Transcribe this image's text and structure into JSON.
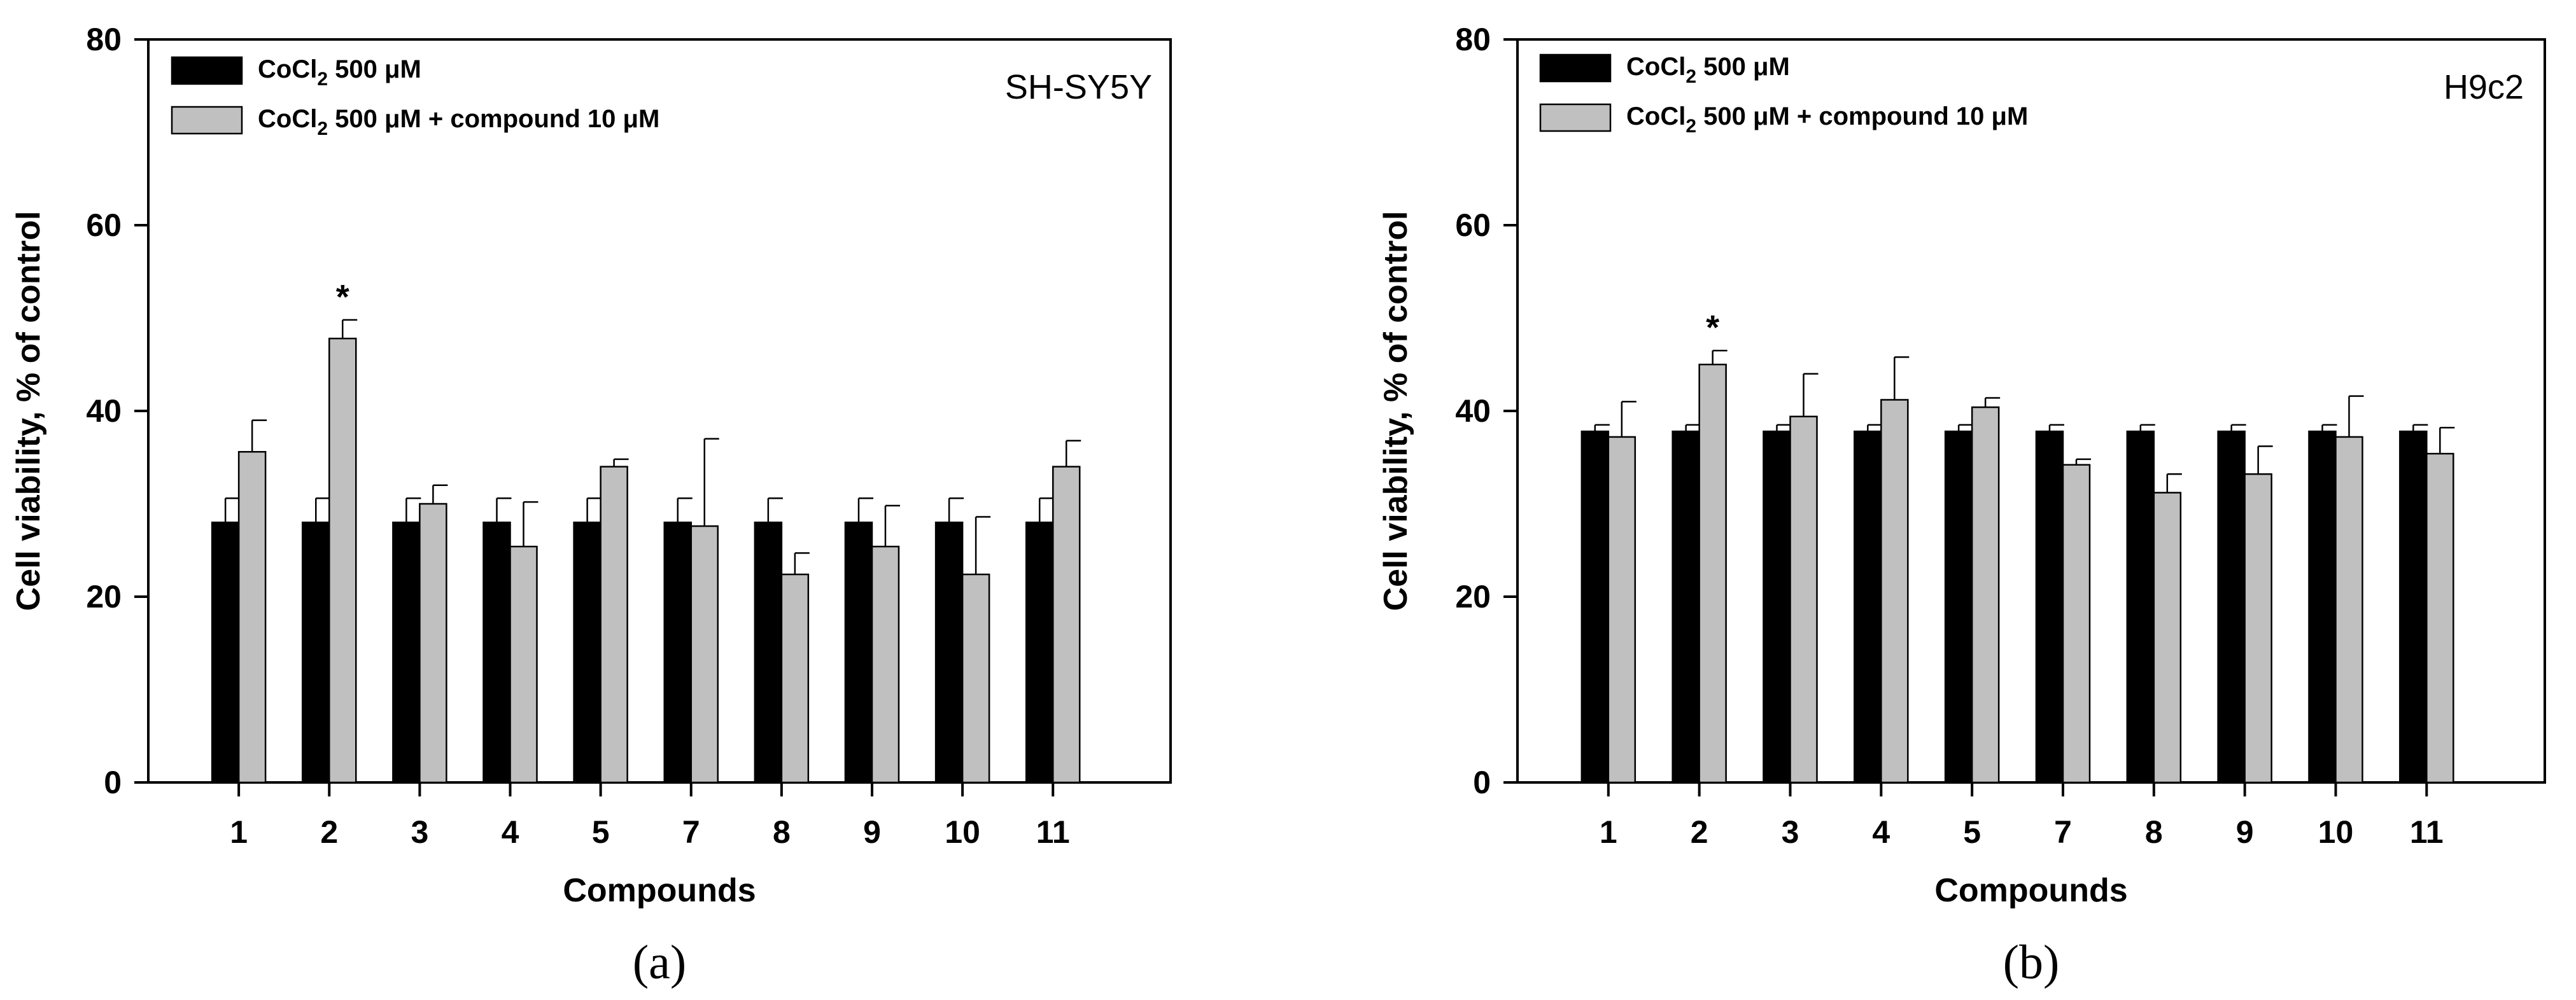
{
  "chart_data": [
    {
      "type": "bar",
      "panel_caption": "(a)",
      "inset_label": "SH-SY5Y",
      "xlabel": "Compounds",
      "ylabel": "Cell viability, % of control",
      "ylim": [
        0,
        80
      ],
      "yticks": [
        "0",
        "20",
        "40",
        "60",
        "80"
      ],
      "categories": [
        "1",
        "2",
        "3",
        "4",
        "5",
        "7",
        "8",
        "9",
        "10",
        "11"
      ],
      "legend_position": "top-left",
      "series": [
        {
          "name": "CoCl2 500 μM",
          "legend_main": "CoCl",
          "legend_sub": "2",
          "legend_rest": " 500 μM",
          "color": "#000000",
          "values": [
            28,
            28,
            28,
            28,
            28,
            28,
            28,
            28,
            28,
            28
          ],
          "errors": [
            2.6,
            2.6,
            2.6,
            2.6,
            2.6,
            2.6,
            2.6,
            2.6,
            2.6,
            2.6
          ]
        },
        {
          "name": "CoCl2 500 μM + compound 10 μM",
          "legend_main": "CoCl",
          "legend_sub": "2",
          "legend_rest": " 500 μM + compound 10 μM",
          "color": "#c0c0c0",
          "values": [
            35.6,
            47.8,
            30,
            25.4,
            34,
            27.6,
            22.4,
            25.4,
            22.4,
            34
          ],
          "errors": [
            3.4,
            2.0,
            2.0,
            4.8,
            0.8,
            9.4,
            2.3,
            4.4,
            6.2,
            2.8
          ]
        }
      ],
      "annotations": [
        {
          "category": "2",
          "series": 1,
          "text": "*"
        }
      ]
    },
    {
      "type": "bar",
      "panel_caption": "(b)",
      "inset_label": "H9c2",
      "xlabel": "Compounds",
      "ylabel": "Cell viability, % of control",
      "ylim": [
        0,
        80
      ],
      "yticks": [
        "0",
        "20",
        "40",
        "60",
        "80"
      ],
      "categories": [
        "1",
        "2",
        "3",
        "4",
        "5",
        "7",
        "8",
        "9",
        "10",
        "11"
      ],
      "legend_position": "top-left",
      "series": [
        {
          "name": "CoCl2 500 μM",
          "legend_main": "CoCl",
          "legend_sub": "2",
          "legend_rest": " 500 μM",
          "color": "#000000",
          "values": [
            37.8,
            37.8,
            37.8,
            37.8,
            37.8,
            37.8,
            37.8,
            37.8,
            37.8,
            37.8
          ],
          "errors": [
            0.7,
            0.7,
            0.7,
            0.7,
            0.7,
            0.7,
            0.7,
            0.7,
            0.7,
            0.7
          ]
        },
        {
          "name": "CoCl2 500 μM + compound 10 μM",
          "legend_main": "CoCl",
          "legend_sub": "2",
          "legend_rest": " 500 μM + compound 10 μM",
          "color": "#c0c0c0",
          "values": [
            37.2,
            45,
            39.4,
            41.2,
            40.4,
            34.2,
            31.2,
            33.2,
            37.2,
            35.4
          ],
          "errors": [
            3.8,
            1.5,
            4.6,
            4.6,
            1.0,
            0.6,
            2.0,
            3.0,
            4.4,
            2.8
          ]
        }
      ],
      "annotations": [
        {
          "category": "2",
          "series": 1,
          "text": "*"
        }
      ]
    }
  ]
}
